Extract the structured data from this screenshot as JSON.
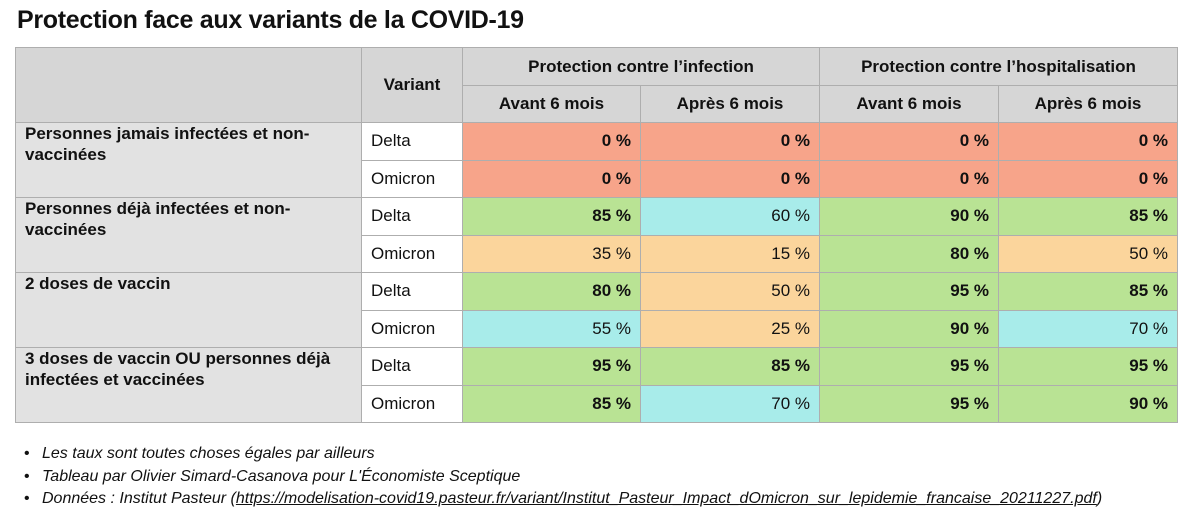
{
  "title": "Protection face aux variants de la COVID-19",
  "colors": {
    "red": "#f7a48a",
    "green": "#b9e394",
    "cyan": "#a8ecea",
    "orange": "#fbd59c",
    "header_gray": "#d6d6d6",
    "group_gray": "#e2e2e2"
  },
  "table": {
    "header": {
      "variant_label": "Variant",
      "group_infection": "Protection contre l’infection",
      "group_hospitalisation": "Protection contre l’hospitalisation",
      "sub": [
        "Avant 6 mois",
        "Après 6 mois",
        "Avant 6 mois",
        "Après 6 mois"
      ]
    },
    "groups": [
      {
        "label": "Personnes jamais infectées et non-vaccinées",
        "rows": [
          {
            "variant": "Delta",
            "cells": [
              {
                "value": "0 %",
                "color": "#f7a48a",
                "bold": true
              },
              {
                "value": "0 %",
                "color": "#f7a48a",
                "bold": true
              },
              {
                "value": "0 %",
                "color": "#f7a48a",
                "bold": true
              },
              {
                "value": "0 %",
                "color": "#f7a48a",
                "bold": true
              }
            ]
          },
          {
            "variant": "Omicron",
            "cells": [
              {
                "value": "0 %",
                "color": "#f7a48a",
                "bold": true
              },
              {
                "value": "0 %",
                "color": "#f7a48a",
                "bold": true
              },
              {
                "value": "0 %",
                "color": "#f7a48a",
                "bold": true
              },
              {
                "value": "0 %",
                "color": "#f7a48a",
                "bold": true
              }
            ]
          }
        ]
      },
      {
        "label": "Personnes déjà infectées et non-vaccinées",
        "rows": [
          {
            "variant": "Delta",
            "cells": [
              {
                "value": "85 %",
                "color": "#b9e394",
                "bold": true
              },
              {
                "value": "60 %",
                "color": "#a8ecea",
                "bold": false
              },
              {
                "value": "90 %",
                "color": "#b9e394",
                "bold": true
              },
              {
                "value": "85 %",
                "color": "#b9e394",
                "bold": true
              }
            ]
          },
          {
            "variant": "Omicron",
            "cells": [
              {
                "value": "35 %",
                "color": "#fbd59c",
                "bold": false
              },
              {
                "value": "15 %",
                "color": "#fbd59c",
                "bold": false
              },
              {
                "value": "80 %",
                "color": "#b9e394",
                "bold": true
              },
              {
                "value": "50 %",
                "color": "#fbd59c",
                "bold": false
              }
            ]
          }
        ]
      },
      {
        "label": "2 doses de vaccin",
        "rows": [
          {
            "variant": "Delta",
            "cells": [
              {
                "value": "80 %",
                "color": "#b9e394",
                "bold": true
              },
              {
                "value": "50 %",
                "color": "#fbd59c",
                "bold": false
              },
              {
                "value": "95 %",
                "color": "#b9e394",
                "bold": true
              },
              {
                "value": "85 %",
                "color": "#b9e394",
                "bold": true
              }
            ]
          },
          {
            "variant": "Omicron",
            "cells": [
              {
                "value": "55 %",
                "color": "#a8ecea",
                "bold": false
              },
              {
                "value": "25 %",
                "color": "#fbd59c",
                "bold": false
              },
              {
                "value": "90 %",
                "color": "#b9e394",
                "bold": true
              },
              {
                "value": "70 %",
                "color": "#a8ecea",
                "bold": false
              }
            ]
          }
        ]
      },
      {
        "label": "3 doses de vaccin OU personnes déjà infectées et vaccinées",
        "rows": [
          {
            "variant": "Delta",
            "cells": [
              {
                "value": "95 %",
                "color": "#b9e394",
                "bold": true
              },
              {
                "value": "85 %",
                "color": "#b9e394",
                "bold": true
              },
              {
                "value": "95 %",
                "color": "#b9e394",
                "bold": true
              },
              {
                "value": "95 %",
                "color": "#b9e394",
                "bold": true
              }
            ]
          },
          {
            "variant": "Omicron",
            "cells": [
              {
                "value": "85 %",
                "color": "#b9e394",
                "bold": true
              },
              {
                "value": "70 %",
                "color": "#a8ecea",
                "bold": false
              },
              {
                "value": "95 %",
                "color": "#b9e394",
                "bold": true
              },
              {
                "value": "90 %",
                "color": "#b9e394",
                "bold": true
              }
            ]
          }
        ]
      }
    ]
  },
  "notes": {
    "items": [
      "Les taux sont toutes choses égales par ailleurs",
      "Tableau par Olivier Simard-Casanova pour L'Économiste Sceptique"
    ],
    "source_prefix": "Données : Institut Pasteur (",
    "source_link": "https://modelisation-covid19.pasteur.fr/variant/Institut_Pasteur_Impact_dOmicron_sur_lepidemie_francaise_20211227.pdf",
    "source_suffix": ")"
  }
}
